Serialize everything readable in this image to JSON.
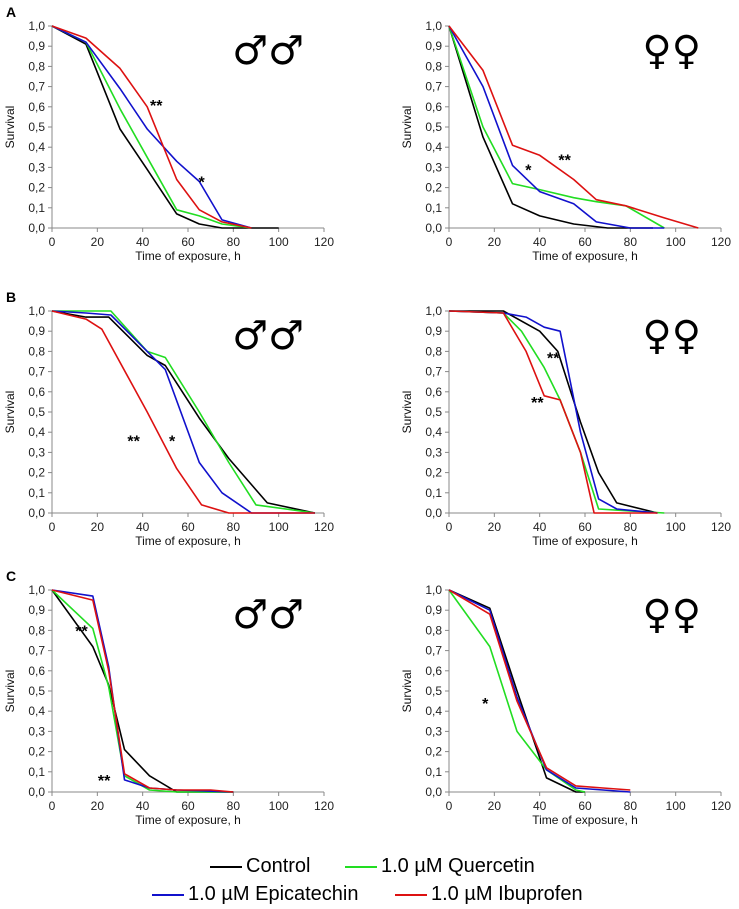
{
  "figure": {
    "colors": {
      "Control": "#000000",
      "Quercetin": "#22dd22",
      "Epicatechin": "#1111cc",
      "Ibuprofen": "#dd1111"
    }
  },
  "legend": {
    "control": "Control",
    "quercetin": "1.0 µM Quercetin",
    "epicatechin": "1.0 µM Epicatechin",
    "ibuprofen": "1.0 µM Ibuprofen"
  },
  "chart_data": [
    {
      "type": "line",
      "row": 0,
      "col": 0,
      "panel_label": "A",
      "sex_symbol": "♂♂",
      "xlabel": "Time of exposure, h",
      "ylabel": "Survival",
      "xlim": [
        0,
        120
      ],
      "ylim": [
        0,
        1
      ],
      "xticks": [
        "0",
        "20",
        "40",
        "60",
        "80",
        "100",
        "120"
      ],
      "yticks": [
        "0,0",
        "0,1",
        "0,2",
        "0,3",
        "0,4",
        "0,5",
        "0,6",
        "0,7",
        "0,8",
        "0,9",
        "1,0"
      ],
      "series": [
        {
          "name": "Control",
          "x": [
            0,
            15,
            30,
            42,
            55,
            65,
            75,
            100
          ],
          "y": [
            1.0,
            0.91,
            0.49,
            0.29,
            0.07,
            0.02,
            0.0,
            0.0
          ]
        },
        {
          "name": "Quercetin",
          "x": [
            0,
            15,
            30,
            42,
            55,
            65,
            75,
            88
          ],
          "y": [
            1.0,
            0.92,
            0.59,
            0.35,
            0.09,
            0.06,
            0.02,
            0.0
          ]
        },
        {
          "name": "Epicatechin",
          "x": [
            0,
            15,
            30,
            42,
            55,
            65,
            75,
            88
          ],
          "y": [
            1.0,
            0.92,
            0.69,
            0.49,
            0.33,
            0.23,
            0.04,
            0.0
          ]
        },
        {
          "name": "Ibuprofen",
          "x": [
            0,
            15,
            30,
            42,
            55,
            65,
            75,
            88
          ],
          "y": [
            1.0,
            0.94,
            0.79,
            0.6,
            0.24,
            0.09,
            0.03,
            0.0
          ]
        }
      ],
      "annotations": [
        {
          "text": "**",
          "x": 46,
          "y": 0.61
        },
        {
          "text": "*",
          "x": 66,
          "y": 0.23
        }
      ]
    },
    {
      "type": "line",
      "row": 0,
      "col": 1,
      "sex_symbol": "♀♀",
      "xlabel": "Time of exposure, h",
      "ylabel": "Survival",
      "xlim": [
        0,
        120
      ],
      "ylim": [
        0,
        1
      ],
      "xticks": [
        "0",
        "20",
        "40",
        "60",
        "80",
        "100",
        "120"
      ],
      "yticks": [
        "0,0",
        "0,1",
        "0,2",
        "0,3",
        "0,4",
        "0,5",
        "0,6",
        "0,7",
        "0,8",
        "0,9",
        "1,0"
      ],
      "series": [
        {
          "name": "Control",
          "x": [
            0,
            15,
            28,
            40,
            55,
            70,
            90
          ],
          "y": [
            1.0,
            0.45,
            0.12,
            0.06,
            0.02,
            0.0,
            0.0
          ]
        },
        {
          "name": "Quercetin",
          "x": [
            0,
            15,
            28,
            40,
            55,
            65,
            78,
            95
          ],
          "y": [
            1.0,
            0.5,
            0.22,
            0.19,
            0.15,
            0.13,
            0.11,
            0.0
          ]
        },
        {
          "name": "Epicatechin",
          "x": [
            0,
            15,
            28,
            40,
            55,
            65,
            80,
            95
          ],
          "y": [
            1.0,
            0.7,
            0.31,
            0.18,
            0.12,
            0.03,
            0.0,
            0.0
          ]
        },
        {
          "name": "Ibuprofen",
          "x": [
            0,
            15,
            28,
            40,
            55,
            65,
            78,
            95,
            110
          ],
          "y": [
            1.0,
            0.78,
            0.41,
            0.36,
            0.24,
            0.14,
            0.11,
            0.05,
            0.0
          ]
        }
      ],
      "annotations": [
        {
          "text": "*",
          "x": 35,
          "y": 0.29
        },
        {
          "text": "**",
          "x": 51,
          "y": 0.34
        }
      ]
    },
    {
      "type": "line",
      "row": 1,
      "col": 0,
      "panel_label": "B",
      "sex_symbol": "♂♂",
      "xlabel": "Time of exposure, h",
      "ylabel": "Survival",
      "xlim": [
        0,
        120
      ],
      "ylim": [
        0,
        1
      ],
      "xticks": [
        "0",
        "20",
        "40",
        "60",
        "80",
        "100",
        "120"
      ],
      "yticks": [
        "0,0",
        "0,1",
        "0,2",
        "0,3",
        "0,4",
        "0,5",
        "0,6",
        "0,7",
        "0,8",
        "0,9",
        "1,0"
      ],
      "series": [
        {
          "name": "Control",
          "x": [
            0,
            15,
            25,
            42,
            50,
            65,
            78,
            95,
            116
          ],
          "y": [
            1.0,
            0.97,
            0.97,
            0.78,
            0.73,
            0.47,
            0.27,
            0.05,
            0.0
          ]
        },
        {
          "name": "Quercetin",
          "x": [
            0,
            15,
            26,
            42,
            50,
            65,
            78,
            90,
            116
          ],
          "y": [
            1.0,
            1.0,
            1.0,
            0.8,
            0.77,
            0.5,
            0.25,
            0.04,
            0.0
          ]
        },
        {
          "name": "Epicatechin",
          "x": [
            0,
            15,
            26,
            42,
            50,
            65,
            75,
            88,
            116
          ],
          "y": [
            1.0,
            0.99,
            0.98,
            0.8,
            0.71,
            0.25,
            0.1,
            0.0,
            0.0
          ]
        },
        {
          "name": "Ibuprofen",
          "x": [
            0,
            15,
            22,
            42,
            55,
            66,
            78,
            116
          ],
          "y": [
            1.0,
            0.96,
            0.91,
            0.5,
            0.22,
            0.04,
            0.0,
            0.0
          ]
        }
      ],
      "annotations": [
        {
          "text": "**",
          "x": 36,
          "y": 0.36
        },
        {
          "text": "*",
          "x": 53,
          "y": 0.36
        }
      ]
    },
    {
      "type": "line",
      "row": 1,
      "col": 1,
      "sex_symbol": "♀♀",
      "xlabel": "Time of exposure, h",
      "ylabel": "Survival",
      "xlim": [
        0,
        120
      ],
      "ylim": [
        0,
        1
      ],
      "xticks": [
        "0",
        "20",
        "40",
        "60",
        "80",
        "100",
        "120"
      ],
      "yticks": [
        "0,0",
        "0,1",
        "0,2",
        "0,3",
        "0,4",
        "0,5",
        "0,6",
        "0,7",
        "0,8",
        "0,9",
        "1,0"
      ],
      "series": [
        {
          "name": "Control",
          "x": [
            0,
            24,
            40,
            48,
            58,
            66,
            74,
            92
          ],
          "y": [
            1.0,
            1.0,
            0.9,
            0.8,
            0.45,
            0.2,
            0.05,
            0.0
          ]
        },
        {
          "name": "Quercetin",
          "x": [
            0,
            24,
            32,
            42,
            49,
            58,
            66,
            95
          ],
          "y": [
            1.0,
            0.99,
            0.9,
            0.72,
            0.56,
            0.3,
            0.02,
            0.0
          ]
        },
        {
          "name": "Epicatechin",
          "x": [
            0,
            24,
            34,
            42,
            49,
            58,
            66,
            74,
            92
          ],
          "y": [
            1.0,
            0.99,
            0.97,
            0.92,
            0.9,
            0.4,
            0.07,
            0.02,
            0.0
          ]
        },
        {
          "name": "Ibuprofen",
          "x": [
            0,
            24,
            34,
            42,
            49,
            58,
            64,
            92
          ],
          "y": [
            1.0,
            0.99,
            0.8,
            0.58,
            0.56,
            0.3,
            0.0,
            0.0
          ]
        }
      ],
      "annotations": [
        {
          "text": "**",
          "x": 46,
          "y": 0.77
        },
        {
          "text": "**",
          "x": 39,
          "y": 0.55
        }
      ]
    },
    {
      "type": "line",
      "row": 2,
      "col": 0,
      "panel_label": "C",
      "sex_symbol": "♂♂",
      "xlabel": "Time of exposure, h",
      "ylabel": "Survival",
      "xlim": [
        0,
        120
      ],
      "ylim": [
        0,
        1
      ],
      "xticks": [
        "0",
        "20",
        "40",
        "60",
        "80",
        "100",
        "120"
      ],
      "yticks": [
        "0,0",
        "0,1",
        "0,2",
        "0,3",
        "0,4",
        "0,5",
        "0,6",
        "0,7",
        "0,8",
        "0,9",
        "1,0"
      ],
      "series": [
        {
          "name": "Control",
          "x": [
            0,
            18,
            25,
            32,
            43,
            55,
            80
          ],
          "y": [
            1.0,
            0.72,
            0.53,
            0.21,
            0.08,
            0.0,
            0.0
          ]
        },
        {
          "name": "Quercetin",
          "x": [
            0,
            18,
            25,
            32,
            43,
            55,
            80
          ],
          "y": [
            1.0,
            0.81,
            0.52,
            0.08,
            0.01,
            0.0,
            0.0
          ]
        },
        {
          "name": "Epicatechin",
          "x": [
            0,
            18,
            25,
            32,
            43,
            55,
            80
          ],
          "y": [
            1.0,
            0.97,
            0.62,
            0.06,
            0.02,
            0.01,
            0.0
          ]
        },
        {
          "name": "Ibuprofen",
          "x": [
            0,
            18,
            25,
            32,
            43,
            55,
            70,
            80
          ],
          "y": [
            1.0,
            0.95,
            0.6,
            0.09,
            0.02,
            0.01,
            0.01,
            0.0
          ]
        }
      ],
      "annotations": [
        {
          "text": "**",
          "x": 13,
          "y": 0.8
        },
        {
          "text": "**",
          "x": 23,
          "y": 0.06
        }
      ]
    },
    {
      "type": "line",
      "row": 2,
      "col": 1,
      "sex_symbol": "♀♀",
      "xlabel": "Time of exposure, h",
      "ylabel": "Survival",
      "xlim": [
        0,
        120
      ],
      "ylim": [
        0,
        1
      ],
      "xticks": [
        "0",
        "20",
        "40",
        "60",
        "80",
        "100",
        "120"
      ],
      "yticks": [
        "0,0",
        "0,1",
        "0,2",
        "0,3",
        "0,4",
        "0,5",
        "0,6",
        "0,7",
        "0,8",
        "0,9",
        "1,0"
      ],
      "series": [
        {
          "name": "Control",
          "x": [
            0,
            18,
            30,
            43,
            56,
            60
          ],
          "y": [
            1.0,
            0.91,
            0.5,
            0.07,
            0.0,
            0.0
          ]
        },
        {
          "name": "Quercetin",
          "x": [
            0,
            18,
            30,
            43,
            56,
            60
          ],
          "y": [
            1.0,
            0.72,
            0.3,
            0.11,
            0.01,
            0.0
          ]
        },
        {
          "name": "Epicatechin",
          "x": [
            0,
            18,
            30,
            43,
            56,
            80
          ],
          "y": [
            1.0,
            0.9,
            0.47,
            0.11,
            0.02,
            0.0
          ]
        },
        {
          "name": "Ibuprofen",
          "x": [
            0,
            18,
            30,
            43,
            56,
            68,
            80
          ],
          "y": [
            1.0,
            0.88,
            0.45,
            0.12,
            0.03,
            0.02,
            0.01
          ]
        }
      ],
      "annotations": [
        {
          "text": "*",
          "x": 16,
          "y": 0.44
        }
      ]
    }
  ]
}
